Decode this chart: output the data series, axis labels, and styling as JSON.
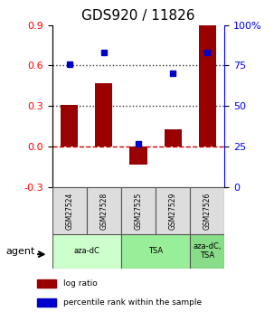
{
  "title": "GDS920 / 11826",
  "samples": [
    "GSM27524",
    "GSM27528",
    "GSM27525",
    "GSM27529",
    "GSM27526"
  ],
  "log_ratios": [
    0.31,
    0.47,
    -0.13,
    0.13,
    0.9
  ],
  "percentile_ranks": [
    76,
    83,
    27,
    70,
    83
  ],
  "bar_color": "#990000",
  "dot_color": "#0000cc",
  "ylim_left": [
    -0.3,
    0.9
  ],
  "ylim_right": [
    0,
    100
  ],
  "yticks_left": [
    -0.3,
    0.0,
    0.3,
    0.6,
    0.9
  ],
  "yticks_right": [
    0,
    25,
    50,
    75,
    100
  ],
  "ytick_labels_right": [
    "0",
    "25",
    "50",
    "75",
    "100%"
  ],
  "hlines": [
    0.3,
    0.6
  ],
  "hline_zero_color": "#cc0000",
  "hline_dot_color": "#333333",
  "agent_groups": [
    {
      "label": "aza-dC",
      "start": 0,
      "end": 2,
      "color": "#ccffcc"
    },
    {
      "label": "TSA",
      "start": 2,
      "end": 4,
      "color": "#99ee99"
    },
    {
      "label": "aza-dC,\nTSA",
      "start": 4,
      "end": 5,
      "color": "#88dd88"
    }
  ],
  "legend_entries": [
    {
      "color": "#990000",
      "label": "log ratio"
    },
    {
      "color": "#0000cc",
      "label": "percentile rank within the sample"
    }
  ],
  "bar_width": 0.5,
  "agent_label": "agent",
  "background_color": "#ffffff"
}
